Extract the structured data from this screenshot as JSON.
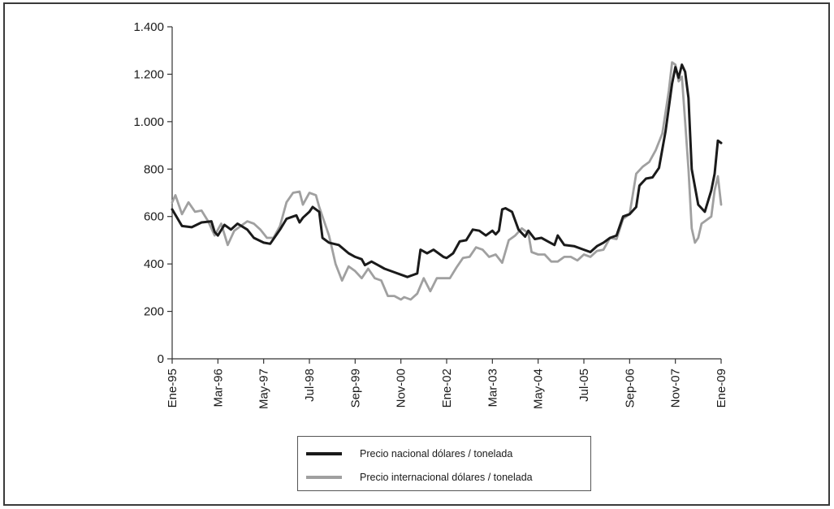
{
  "chart_data": {
    "type": "line",
    "title": "",
    "xlabel": "",
    "ylabel": "",
    "x_start": "1995-01",
    "x_end": "2009-01",
    "x_tick_labels": [
      "Ene-95",
      "Mar-96",
      "May-97",
      "Jul-98",
      "Sep-99",
      "Nov-00",
      "Ene-02",
      "Mar-03",
      "May-04",
      "Jul-05",
      "Sep-06",
      "Nov-07",
      "Ene-09"
    ],
    "y_tick_labels": [
      "0",
      "200",
      "400",
      "600",
      "800",
      "1.000",
      "1.200",
      "1.400"
    ],
    "y_ticks": [
      0,
      200,
      400,
      600,
      800,
      1000,
      1200,
      1400
    ],
    "ylim": [
      0,
      1400
    ],
    "grid": false,
    "legend_position": "bottom",
    "series": [
      {
        "name": "Precio nacional dólares / tonelada",
        "color": "#1a1a1a",
        "points": [
          [
            "1995-01",
            630
          ],
          [
            "1995-04",
            560
          ],
          [
            "1995-07",
            555
          ],
          [
            "1995-10",
            575
          ],
          [
            "1996-01",
            580
          ],
          [
            "1996-02",
            535
          ],
          [
            "1996-03",
            520
          ],
          [
            "1996-05",
            565
          ],
          [
            "1996-07",
            545
          ],
          [
            "1996-09",
            570
          ],
          [
            "1996-12",
            545
          ],
          [
            "1997-02",
            510
          ],
          [
            "1997-05",
            490
          ],
          [
            "1997-07",
            485
          ],
          [
            "1997-10",
            545
          ],
          [
            "1997-12",
            590
          ],
          [
            "1998-03",
            605
          ],
          [
            "1998-04",
            575
          ],
          [
            "1998-05",
            595
          ],
          [
            "1998-07",
            620
          ],
          [
            "1998-08",
            640
          ],
          [
            "1998-10",
            620
          ],
          [
            "1998-11",
            510
          ],
          [
            "1999-01",
            490
          ],
          [
            "1999-04",
            480
          ],
          [
            "1999-07",
            445
          ],
          [
            "1999-09",
            430
          ],
          [
            "1999-11",
            420
          ],
          [
            "1999-12",
            395
          ],
          [
            "2000-02",
            410
          ],
          [
            "2000-04",
            395
          ],
          [
            "2000-06",
            380
          ],
          [
            "2000-09",
            365
          ],
          [
            "2000-11",
            355
          ],
          [
            "2001-01",
            345
          ],
          [
            "2001-04",
            360
          ],
          [
            "2001-05",
            460
          ],
          [
            "2001-07",
            445
          ],
          [
            "2001-09",
            460
          ],
          [
            "2001-12",
            430
          ],
          [
            "2002-01",
            425
          ],
          [
            "2002-03",
            445
          ],
          [
            "2002-05",
            495
          ],
          [
            "2002-07",
            500
          ],
          [
            "2002-09",
            545
          ],
          [
            "2002-11",
            540
          ],
          [
            "2003-01",
            520
          ],
          [
            "2003-03",
            540
          ],
          [
            "2003-04",
            525
          ],
          [
            "2003-05",
            540
          ],
          [
            "2003-06",
            630
          ],
          [
            "2003-07",
            635
          ],
          [
            "2003-09",
            620
          ],
          [
            "2003-11",
            545
          ],
          [
            "2004-01",
            515
          ],
          [
            "2004-02",
            540
          ],
          [
            "2004-04",
            505
          ],
          [
            "2004-06",
            510
          ],
          [
            "2004-08",
            495
          ],
          [
            "2004-10",
            480
          ],
          [
            "2004-11",
            520
          ],
          [
            "2005-01",
            480
          ],
          [
            "2005-04",
            475
          ],
          [
            "2005-07",
            460
          ],
          [
            "2005-09",
            450
          ],
          [
            "2005-11",
            475
          ],
          [
            "2006-01",
            490
          ],
          [
            "2006-03",
            510
          ],
          [
            "2006-05",
            520
          ],
          [
            "2006-07",
            600
          ],
          [
            "2006-09",
            610
          ],
          [
            "2006-11",
            640
          ],
          [
            "2006-12",
            730
          ],
          [
            "2007-02",
            760
          ],
          [
            "2007-04",
            765
          ],
          [
            "2007-06",
            805
          ],
          [
            "2007-08",
            960
          ],
          [
            "2007-10",
            1160
          ],
          [
            "2007-11",
            1230
          ],
          [
            "2007-12",
            1185
          ],
          [
            "2008-01",
            1240
          ],
          [
            "2008-02",
            1210
          ],
          [
            "2008-03",
            1100
          ],
          [
            "2008-04",
            800
          ],
          [
            "2008-06",
            650
          ],
          [
            "2008-08",
            620
          ],
          [
            "2008-10",
            710
          ],
          [
            "2008-11",
            780
          ],
          [
            "2008-12",
            920
          ],
          [
            "2009-01",
            910
          ]
        ]
      },
      {
        "name": "Precio internacional dólares / tonelada",
        "color": "#a0a0a0",
        "points": [
          [
            "1995-01",
            660
          ],
          [
            "1995-02",
            690
          ],
          [
            "1995-04",
            610
          ],
          [
            "1995-06",
            660
          ],
          [
            "1995-08",
            620
          ],
          [
            "1995-10",
            625
          ],
          [
            "1995-12",
            580
          ],
          [
            "1996-02",
            520
          ],
          [
            "1996-04",
            570
          ],
          [
            "1996-06",
            480
          ],
          [
            "1996-08",
            540
          ],
          [
            "1996-10",
            560
          ],
          [
            "1996-12",
            580
          ],
          [
            "1997-02",
            570
          ],
          [
            "1997-04",
            545
          ],
          [
            "1997-06",
            510
          ],
          [
            "1997-08",
            510
          ],
          [
            "1997-10",
            560
          ],
          [
            "1997-12",
            660
          ],
          [
            "1998-02",
            700
          ],
          [
            "1998-04",
            705
          ],
          [
            "1998-05",
            650
          ],
          [
            "1998-07",
            700
          ],
          [
            "1998-09",
            690
          ],
          [
            "1998-10",
            640
          ],
          [
            "1998-11",
            600
          ],
          [
            "1999-01",
            520
          ],
          [
            "1999-02",
            460
          ],
          [
            "1999-03",
            400
          ],
          [
            "1999-05",
            330
          ],
          [
            "1999-07",
            390
          ],
          [
            "1999-09",
            370
          ],
          [
            "1999-11",
            340
          ],
          [
            "2000-01",
            380
          ],
          [
            "2000-03",
            340
          ],
          [
            "2000-05",
            330
          ],
          [
            "2000-07",
            265
          ],
          [
            "2000-09",
            265
          ],
          [
            "2000-11",
            250
          ],
          [
            "2000-12",
            260
          ],
          [
            "2001-02",
            250
          ],
          [
            "2001-04",
            275
          ],
          [
            "2001-06",
            340
          ],
          [
            "2001-08",
            285
          ],
          [
            "2001-10",
            340
          ],
          [
            "2001-12",
            340
          ],
          [
            "2002-02",
            340
          ],
          [
            "2002-04",
            385
          ],
          [
            "2002-06",
            425
          ],
          [
            "2002-08",
            430
          ],
          [
            "2002-10",
            470
          ],
          [
            "2002-12",
            460
          ],
          [
            "2003-02",
            430
          ],
          [
            "2003-04",
            440
          ],
          [
            "2003-06",
            405
          ],
          [
            "2003-08",
            500
          ],
          [
            "2003-10",
            520
          ],
          [
            "2003-12",
            550
          ],
          [
            "2004-02",
            530
          ],
          [
            "2004-03",
            450
          ],
          [
            "2004-05",
            440
          ],
          [
            "2004-07",
            440
          ],
          [
            "2004-09",
            410
          ],
          [
            "2004-11",
            410
          ],
          [
            "2005-01",
            430
          ],
          [
            "2005-03",
            430
          ],
          [
            "2005-05",
            415
          ],
          [
            "2005-07",
            440
          ],
          [
            "2005-09",
            430
          ],
          [
            "2005-11",
            455
          ],
          [
            "2006-01",
            460
          ],
          [
            "2006-03",
            510
          ],
          [
            "2006-05",
            505
          ],
          [
            "2006-07",
            590
          ],
          [
            "2006-09",
            610
          ],
          [
            "2006-11",
            780
          ],
          [
            "2007-01",
            810
          ],
          [
            "2007-03",
            830
          ],
          [
            "2007-05",
            880
          ],
          [
            "2007-07",
            950
          ],
          [
            "2007-09",
            1130
          ],
          [
            "2007-10",
            1250
          ],
          [
            "2007-11",
            1240
          ],
          [
            "2007-12",
            1170
          ],
          [
            "2008-01",
            1190
          ],
          [
            "2008-02",
            1000
          ],
          [
            "2008-03",
            800
          ],
          [
            "2008-04",
            550
          ],
          [
            "2008-05",
            490
          ],
          [
            "2008-06",
            510
          ],
          [
            "2008-07",
            570
          ],
          [
            "2008-08",
            580
          ],
          [
            "2008-10",
            600
          ],
          [
            "2008-11",
            710
          ],
          [
            "2008-12",
            770
          ],
          [
            "2009-01",
            650
          ]
        ]
      }
    ]
  }
}
